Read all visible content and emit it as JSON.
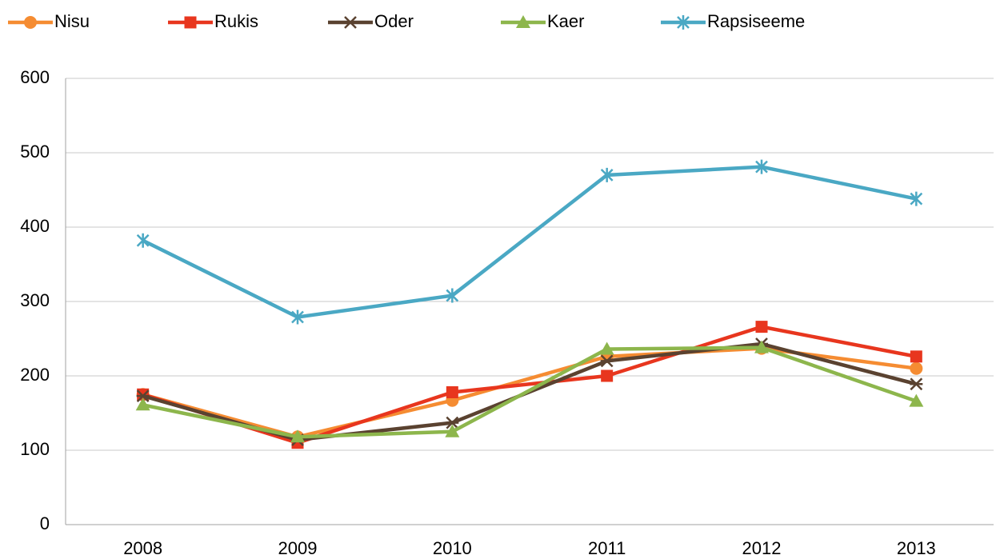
{
  "chart_data": {
    "type": "line",
    "categories": [
      "2008",
      "2009",
      "2010",
      "2011",
      "2012",
      "2013"
    ],
    "series": [
      {
        "name": "Nisu",
        "color": "#f58c32",
        "marker": "circle",
        "values": [
          175,
          118,
          167,
          226,
          237,
          210
        ]
      },
      {
        "name": "Rukis",
        "color": "#e8361e",
        "marker": "square",
        "values": [
          175,
          110,
          178,
          200,
          266,
          226
        ]
      },
      {
        "name": "Oder",
        "color": "#5a4230",
        "marker": "cross",
        "values": [
          173,
          114,
          137,
          220,
          243,
          189
        ]
      },
      {
        "name": "Kaer",
        "color": "#8db64c",
        "marker": "triangle",
        "values": [
          161,
          118,
          125,
          236,
          238,
          166
        ]
      },
      {
        "name": "Rapsiseeme",
        "color": "#4aa8c4",
        "marker": "star",
        "values": [
          382,
          279,
          308,
          470,
          481,
          438
        ]
      }
    ],
    "ylim": [
      0,
      600
    ],
    "yticks": [
      0,
      100,
      200,
      300,
      400,
      500,
      600
    ],
    "grid": true,
    "legend": "top"
  }
}
